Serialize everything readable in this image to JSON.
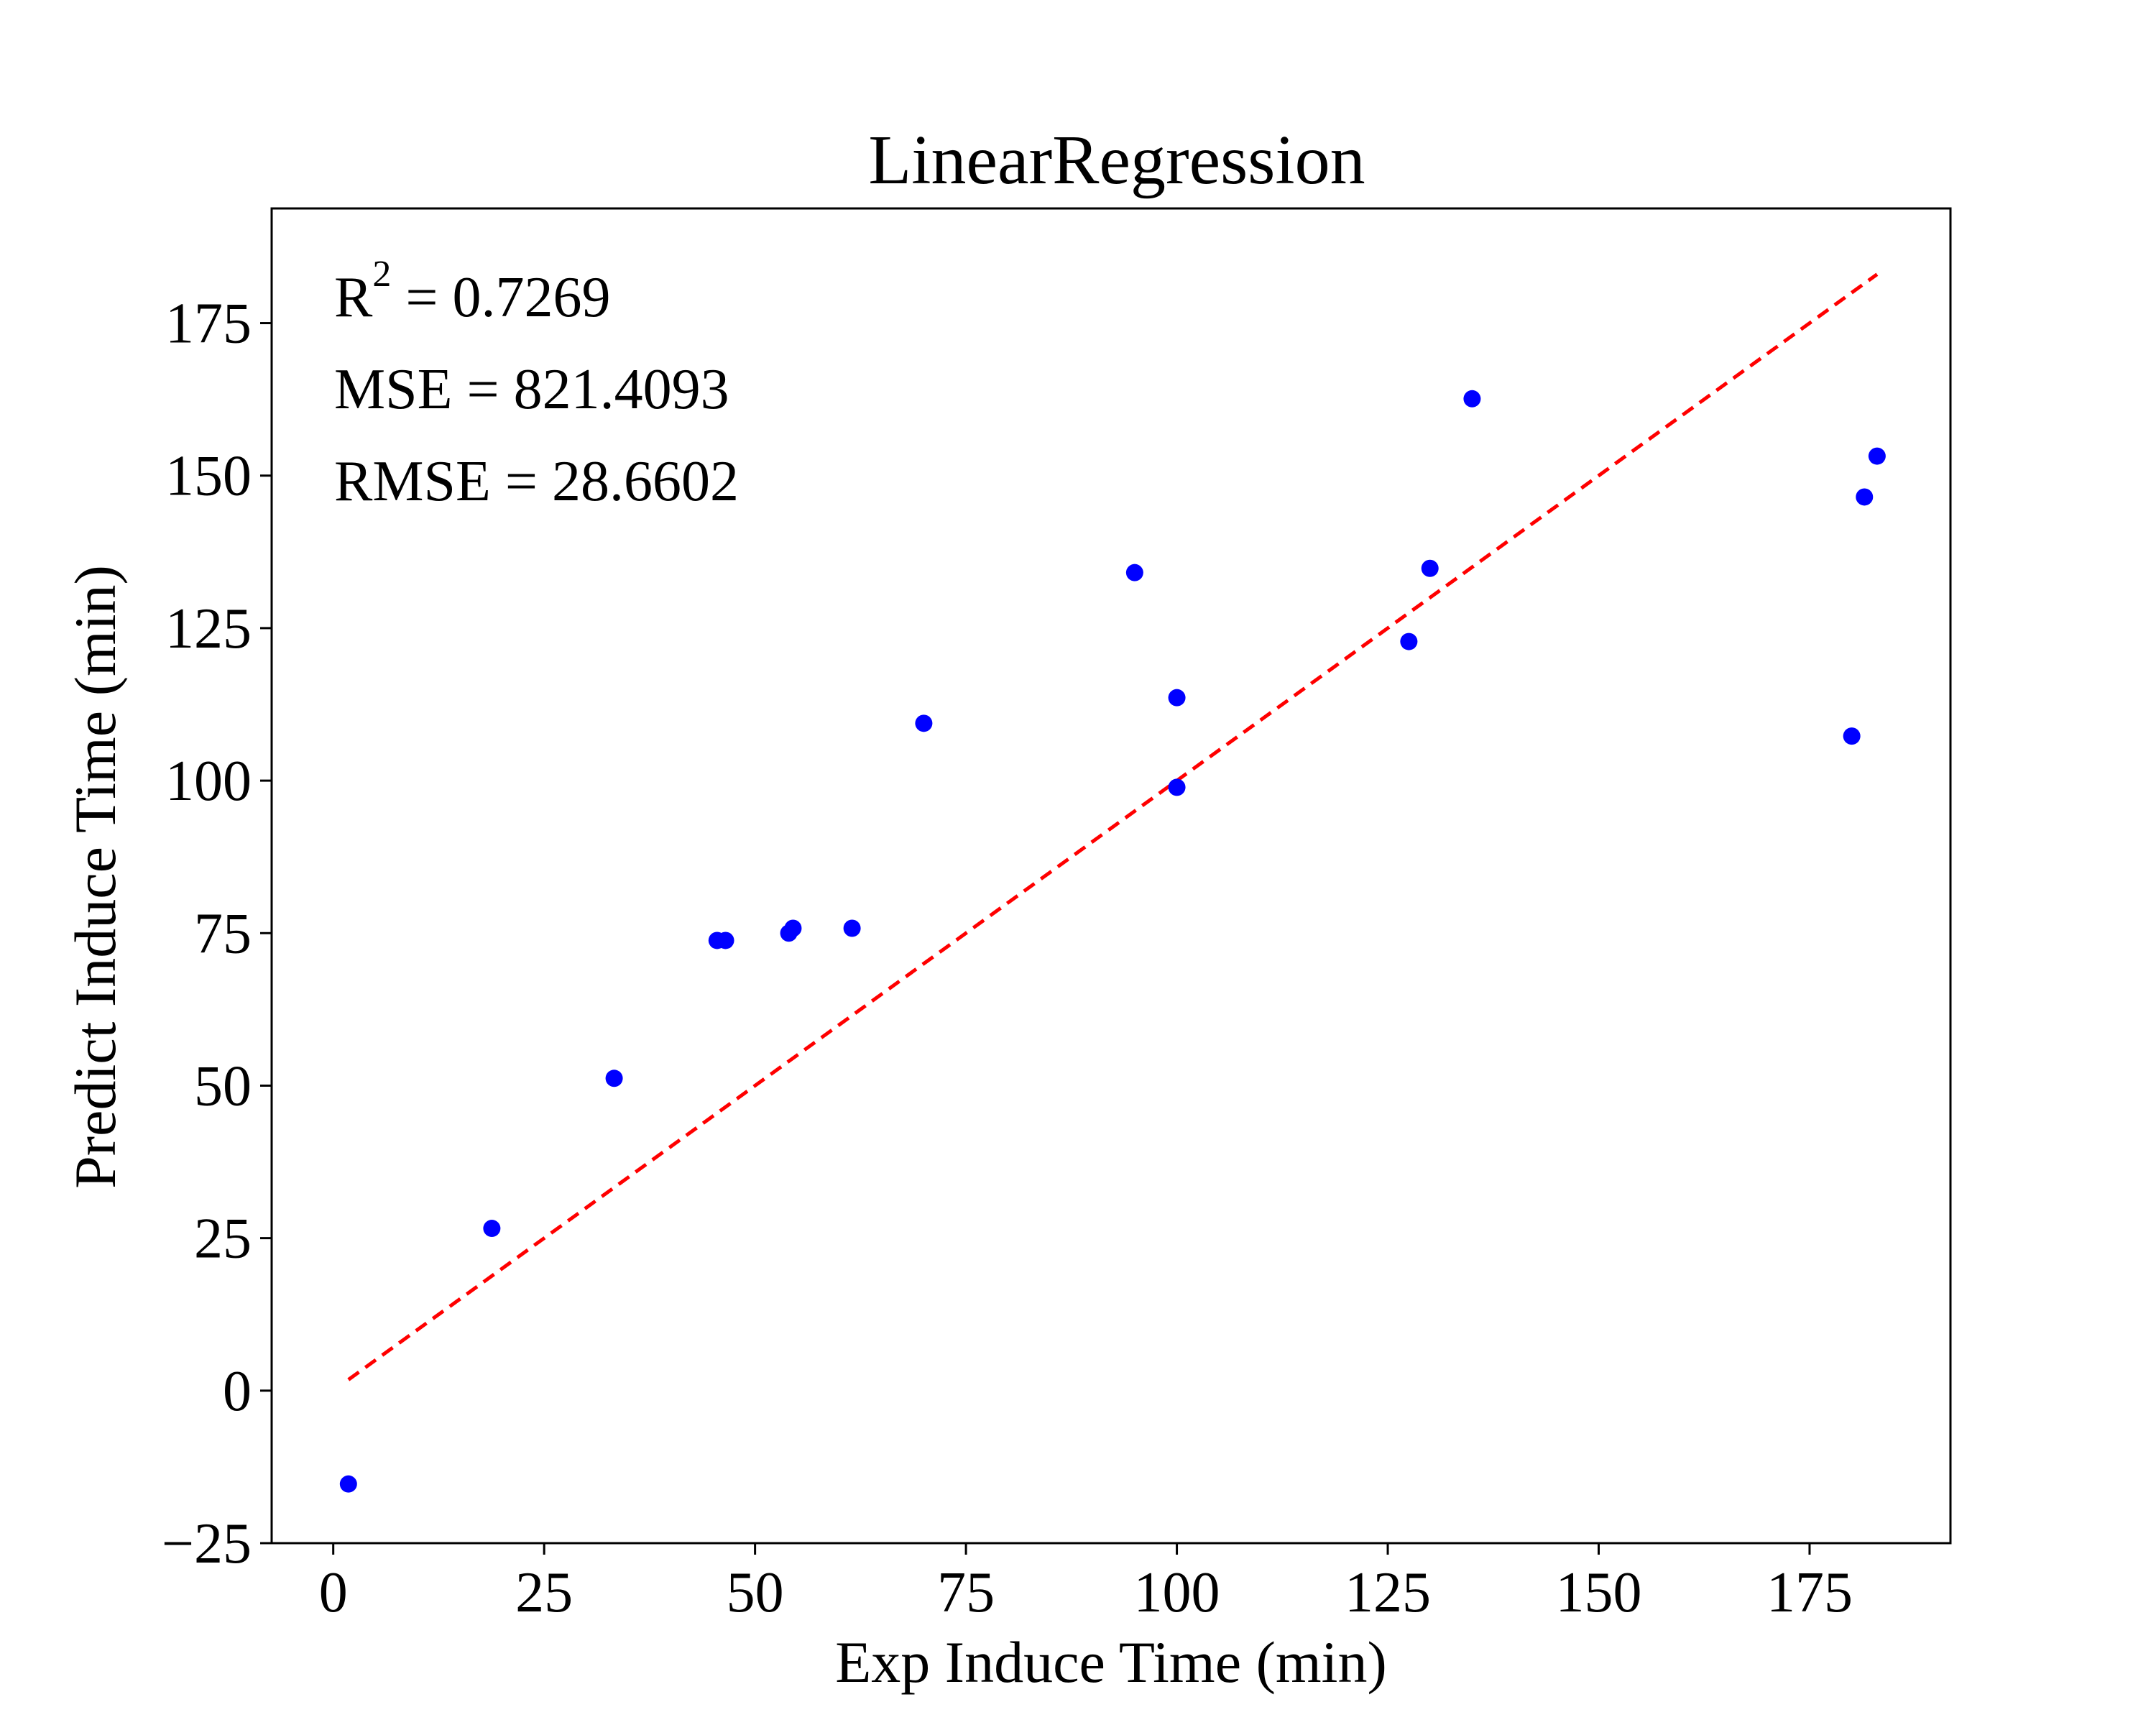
{
  "chart_data": {
    "type": "scatter",
    "title": "LinearRegression",
    "xlabel": "Exp Induce Time (min)",
    "ylabel": "Predict Induce Time (min)",
    "xlim": [
      -7.3,
      191.7
    ],
    "ylim": [
      -25,
      193.8
    ],
    "xticks": [
      0,
      25,
      50,
      75,
      100,
      125,
      150,
      175
    ],
    "xtick_labels": [
      "0",
      "25",
      "50",
      "75",
      "100",
      "125",
      "150",
      "175"
    ],
    "yticks": [
      -25,
      0,
      25,
      50,
      75,
      100,
      125,
      150,
      175
    ],
    "ytick_labels": [
      "−25",
      "0",
      "25",
      "50",
      "75",
      "100",
      "125",
      "150",
      "175"
    ],
    "grid": false,
    "annotations": [
      {
        "label": "R",
        "sup": "2",
        "value": " = 0.7269"
      },
      {
        "label": "MSE",
        "value": " = 821.4093"
      },
      {
        "label": "RMSE",
        "value": " = 28.6602"
      }
    ],
    "series": [
      {
        "type": "scatter",
        "color": "#0000ff",
        "points": [
          {
            "x": 1.8,
            "y": -15.3
          },
          {
            "x": 18.8,
            "y": 26.6
          },
          {
            "x": 33.3,
            "y": 51.2
          },
          {
            "x": 45.5,
            "y": 73.8
          },
          {
            "x": 46.5,
            "y": 73.8
          },
          {
            "x": 54.0,
            "y": 75.0
          },
          {
            "x": 54.5,
            "y": 75.8
          },
          {
            "x": 61.5,
            "y": 75.8
          },
          {
            "x": 70.0,
            "y": 109.4
          },
          {
            "x": 95.0,
            "y": 134.1
          },
          {
            "x": 100.0,
            "y": 113.6
          },
          {
            "x": 100.0,
            "y": 98.9
          },
          {
            "x": 127.5,
            "y": 122.8
          },
          {
            "x": 130.0,
            "y": 134.8
          },
          {
            "x": 135.0,
            "y": 162.6
          },
          {
            "x": 180.0,
            "y": 107.3
          },
          {
            "x": 181.5,
            "y": 146.5
          },
          {
            "x": 183.0,
            "y": 153.2
          }
        ]
      },
      {
        "type": "line",
        "style": "dashed",
        "color": "#ff0000",
        "x": [
          1.8,
          183.0
        ],
        "y": [
          1.8,
          183.0
        ]
      }
    ]
  }
}
